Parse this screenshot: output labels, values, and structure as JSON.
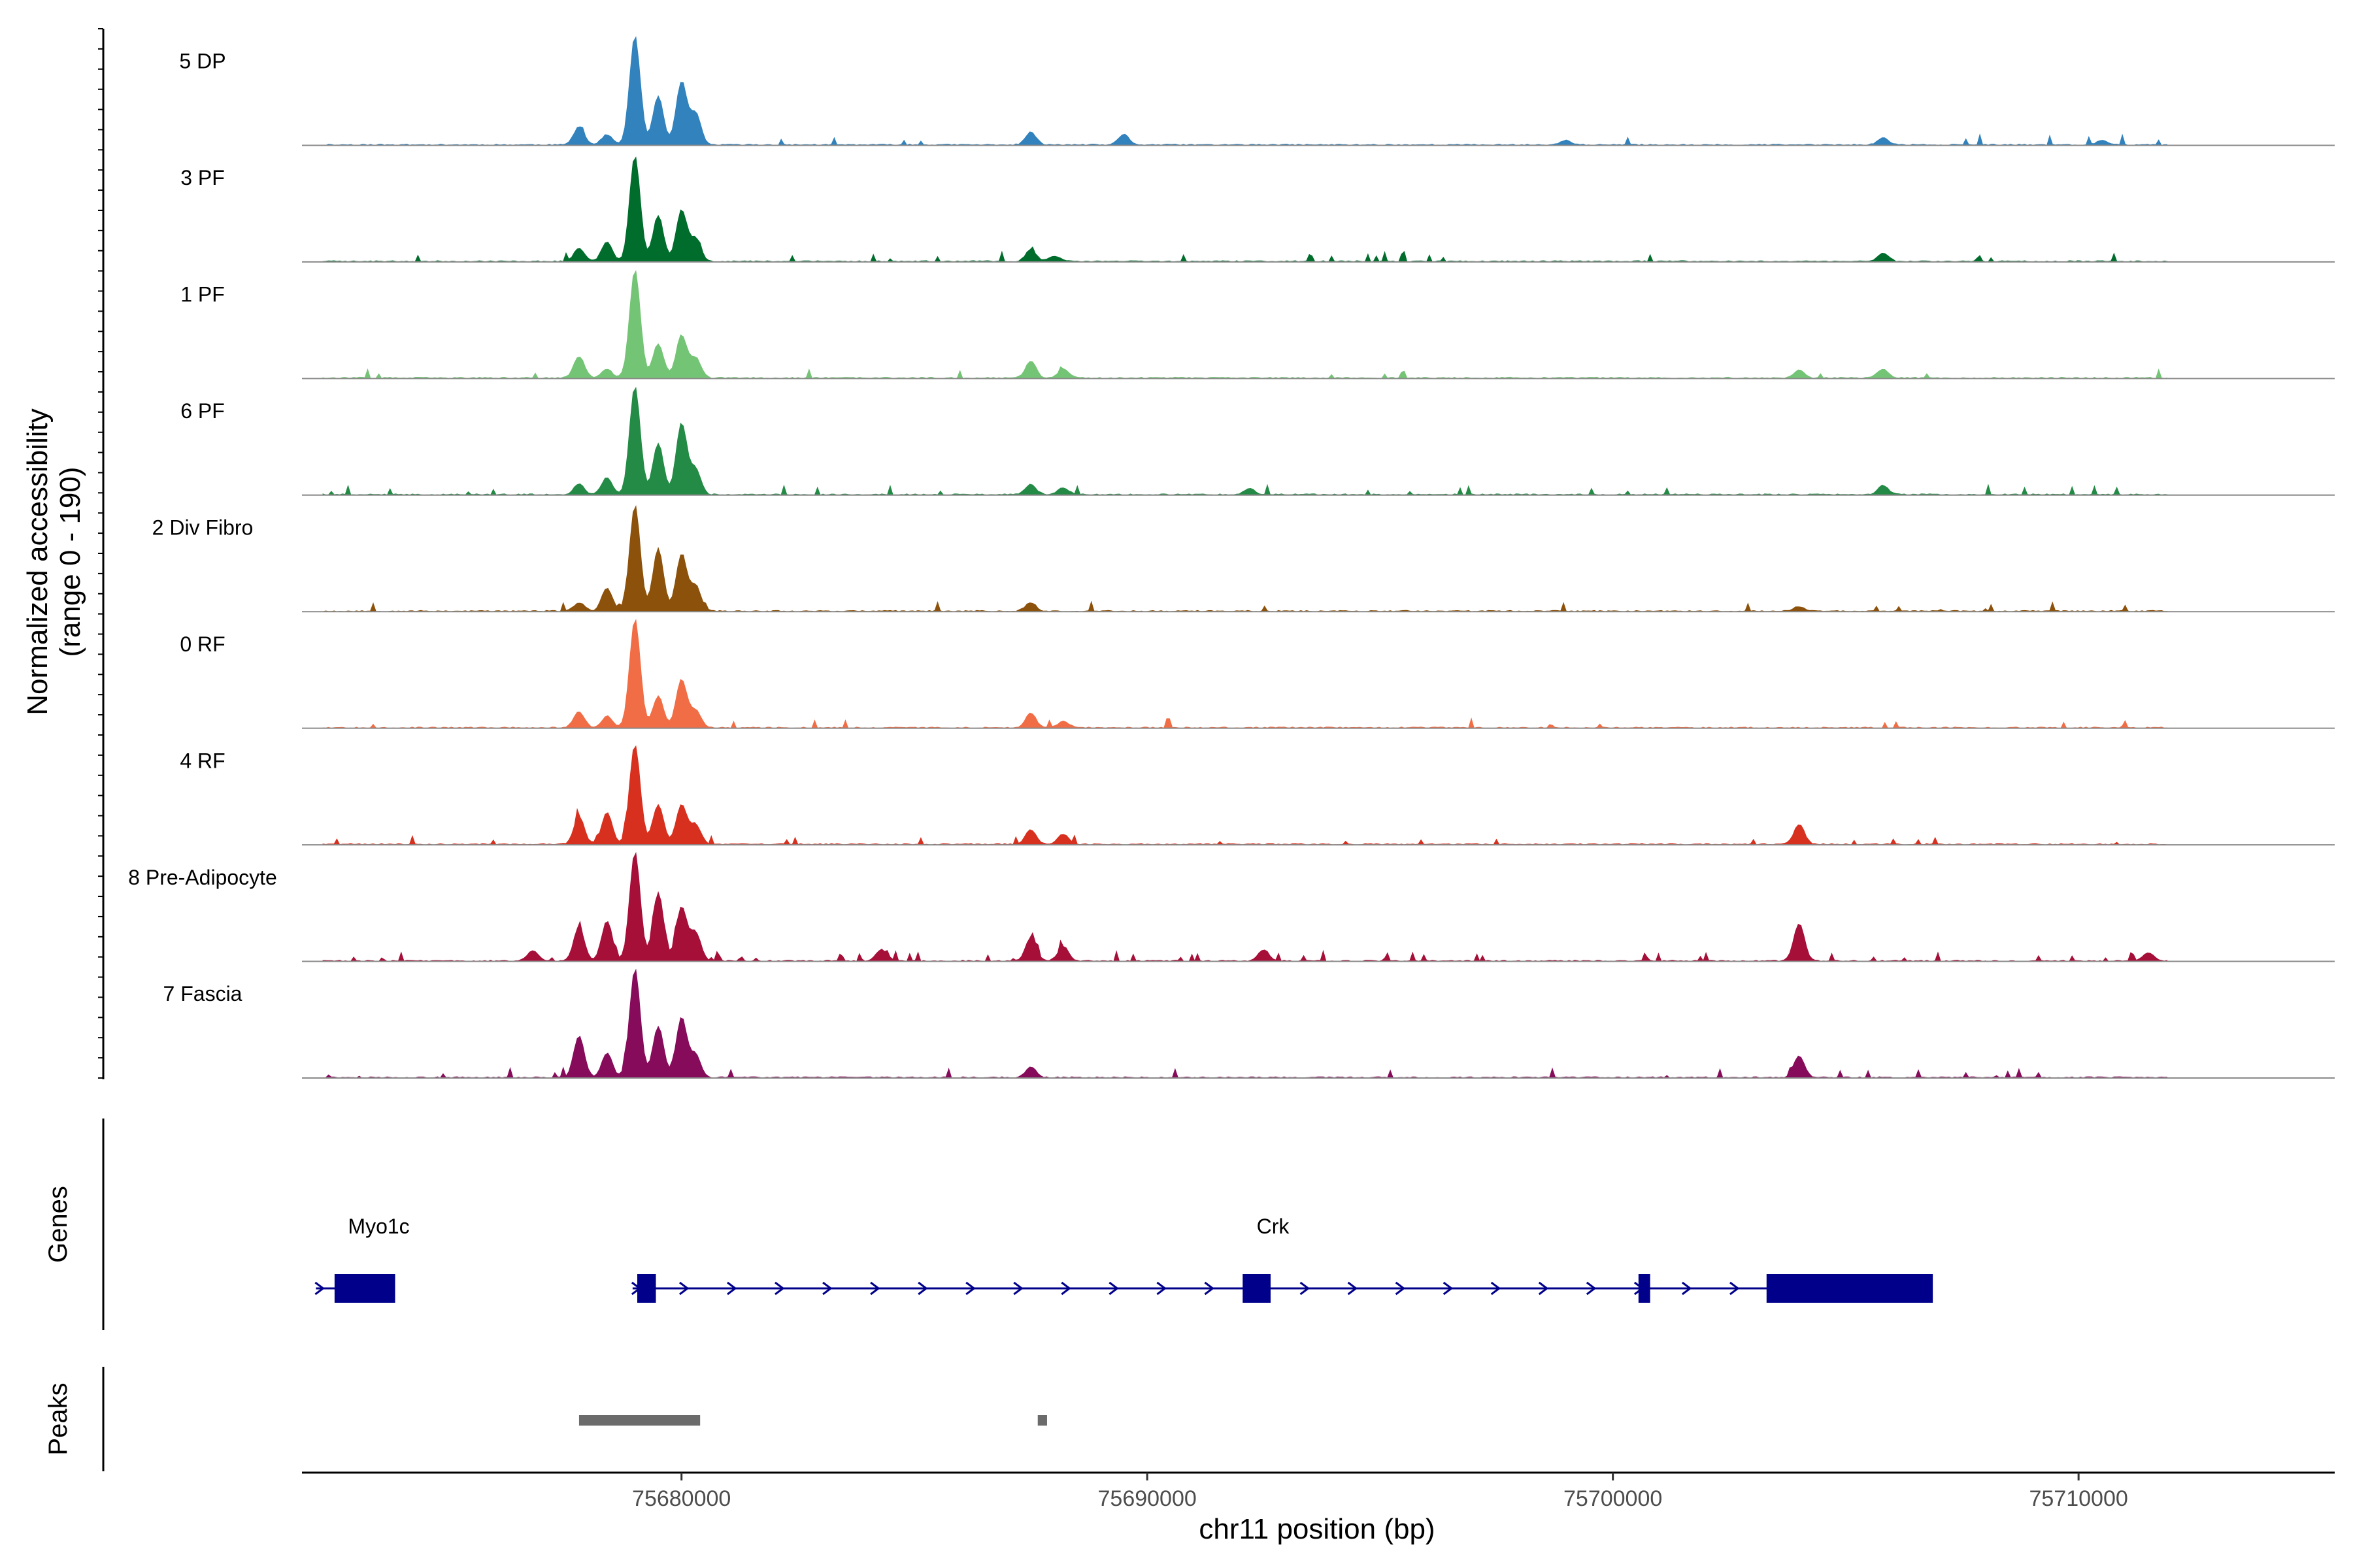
{
  "chart_data": {
    "type": "area",
    "title": "",
    "ylabel_line1": "Normalized accessibility",
    "ylabel_line2": "(range 0 - 190)",
    "yrange": [
      0,
      190
    ],
    "xlabel": "chr11 position (bp)",
    "xlim": [
      75671850,
      75715500
    ],
    "xticks": [
      75680000,
      75690000,
      75700000,
      75710000
    ],
    "xtick_labels": [
      "75680000",
      "75690000",
      "75700000",
      "75710000"
    ],
    "tracks": [
      {
        "name": "5 DP",
        "color": "#3182bd",
        "peaks": [
          [
            75677800,
            32
          ],
          [
            75678400,
            18
          ],
          [
            75679000,
            190
          ],
          [
            75679500,
            85
          ],
          [
            75680000,
            110
          ],
          [
            75680300,
            55
          ],
          [
            75687500,
            22
          ],
          [
            75689500,
            18
          ],
          [
            75699000,
            8
          ],
          [
            75705800,
            12
          ],
          [
            75710500,
            8
          ]
        ],
        "noise": 0.025,
        "seed": 11
      },
      {
        "name": "3 PF",
        "color": "#006d2c",
        "peaks": [
          [
            75677800,
            22
          ],
          [
            75678400,
            35
          ],
          [
            75679000,
            185
          ],
          [
            75679500,
            80
          ],
          [
            75680000,
            90
          ],
          [
            75680300,
            40
          ],
          [
            75687500,
            20
          ],
          [
            75688000,
            10
          ],
          [
            75705800,
            15
          ]
        ],
        "noise": 0.035,
        "seed": 23
      },
      {
        "name": "1 PF",
        "color": "#74c476",
        "peaks": [
          [
            75677800,
            38
          ],
          [
            75678400,
            15
          ],
          [
            75679000,
            190
          ],
          [
            75679500,
            60
          ],
          [
            75680000,
            75
          ],
          [
            75680300,
            35
          ],
          [
            75687500,
            30
          ],
          [
            75688200,
            15
          ],
          [
            75704000,
            14
          ],
          [
            75705800,
            16
          ]
        ],
        "noise": 0.02,
        "seed": 37
      },
      {
        "name": "6 PF",
        "color": "#238b45",
        "peaks": [
          [
            75677800,
            18
          ],
          [
            75678400,
            30
          ],
          [
            75679000,
            190
          ],
          [
            75679500,
            90
          ],
          [
            75680000,
            125
          ],
          [
            75680300,
            45
          ],
          [
            75687500,
            18
          ],
          [
            75688200,
            12
          ],
          [
            75692200,
            10
          ],
          [
            75705800,
            16
          ]
        ],
        "noise": 0.04,
        "seed": 41
      },
      {
        "name": "2 Div Fibro",
        "color": "#8c510a",
        "peaks": [
          [
            75677800,
            15
          ],
          [
            75678400,
            40
          ],
          [
            75679000,
            185
          ],
          [
            75679500,
            110
          ],
          [
            75680000,
            100
          ],
          [
            75680300,
            45
          ],
          [
            75687500,
            15
          ],
          [
            75704000,
            8
          ]
        ],
        "noise": 0.03,
        "seed": 53
      },
      {
        "name": "0 RF",
        "color": "#f16d45",
        "peaks": [
          [
            75677800,
            28
          ],
          [
            75678400,
            20
          ],
          [
            75679000,
            190
          ],
          [
            75679500,
            55
          ],
          [
            75680000,
            85
          ],
          [
            75680300,
            30
          ],
          [
            75687500,
            25
          ],
          [
            75688200,
            12
          ]
        ],
        "noise": 0.02,
        "seed": 67
      },
      {
        "name": "4 RF",
        "color": "#d7301f",
        "peaks": [
          [
            75677800,
            48
          ],
          [
            75678400,
            55
          ],
          [
            75679000,
            175
          ],
          [
            75679500,
            70
          ],
          [
            75680000,
            70
          ],
          [
            75680300,
            35
          ],
          [
            75687500,
            25
          ],
          [
            75688200,
            18
          ],
          [
            75704000,
            35
          ]
        ],
        "noise": 0.03,
        "seed": 71
      },
      {
        "name": "8 Pre-Adipocyte",
        "color": "#a50f38",
        "peaks": [
          [
            75676800,
            18
          ],
          [
            75677800,
            60
          ],
          [
            75678400,
            70
          ],
          [
            75679000,
            190
          ],
          [
            75679500,
            120
          ],
          [
            75680000,
            95
          ],
          [
            75680300,
            50
          ],
          [
            75684300,
            20
          ],
          [
            75687500,
            40
          ],
          [
            75688200,
            25
          ],
          [
            75692500,
            20
          ],
          [
            75704000,
            65
          ],
          [
            75711500,
            15
          ]
        ],
        "noise": 0.09,
        "seed": 83
      },
      {
        "name": "7 Fascia",
        "color": "#860b5a",
        "peaks": [
          [
            75677800,
            72
          ],
          [
            75678400,
            42
          ],
          [
            75679000,
            190
          ],
          [
            75679500,
            90
          ],
          [
            75680000,
            105
          ],
          [
            75680300,
            40
          ],
          [
            75687500,
            18
          ],
          [
            75704000,
            38
          ]
        ],
        "noise": 0.04,
        "seed": 97
      }
    ],
    "genes": [
      {
        "name": "Myo1c",
        "start": 75672150,
        "end": 75673800,
        "strand": "+",
        "exons": [
          [
            75672550,
            75673850
          ]
        ],
        "label_pos": 75673500
      },
      {
        "name": "Crk",
        "start": 75678950,
        "end": 75706800,
        "strand": "+",
        "exons": [
          [
            75679050,
            75679450
          ],
          [
            75692050,
            75692650
          ],
          [
            75700550,
            75700800
          ],
          [
            75703300,
            75706870
          ]
        ],
        "label_pos": 75692700
      }
    ],
    "peaks_track": [
      [
        75677800,
        75680400
      ],
      [
        75687650,
        75687850
      ]
    ],
    "gene_color": "#00008b",
    "peak_color": "#6b6b6b",
    "panel_labels": [
      "Genes",
      "Peaks"
    ]
  }
}
